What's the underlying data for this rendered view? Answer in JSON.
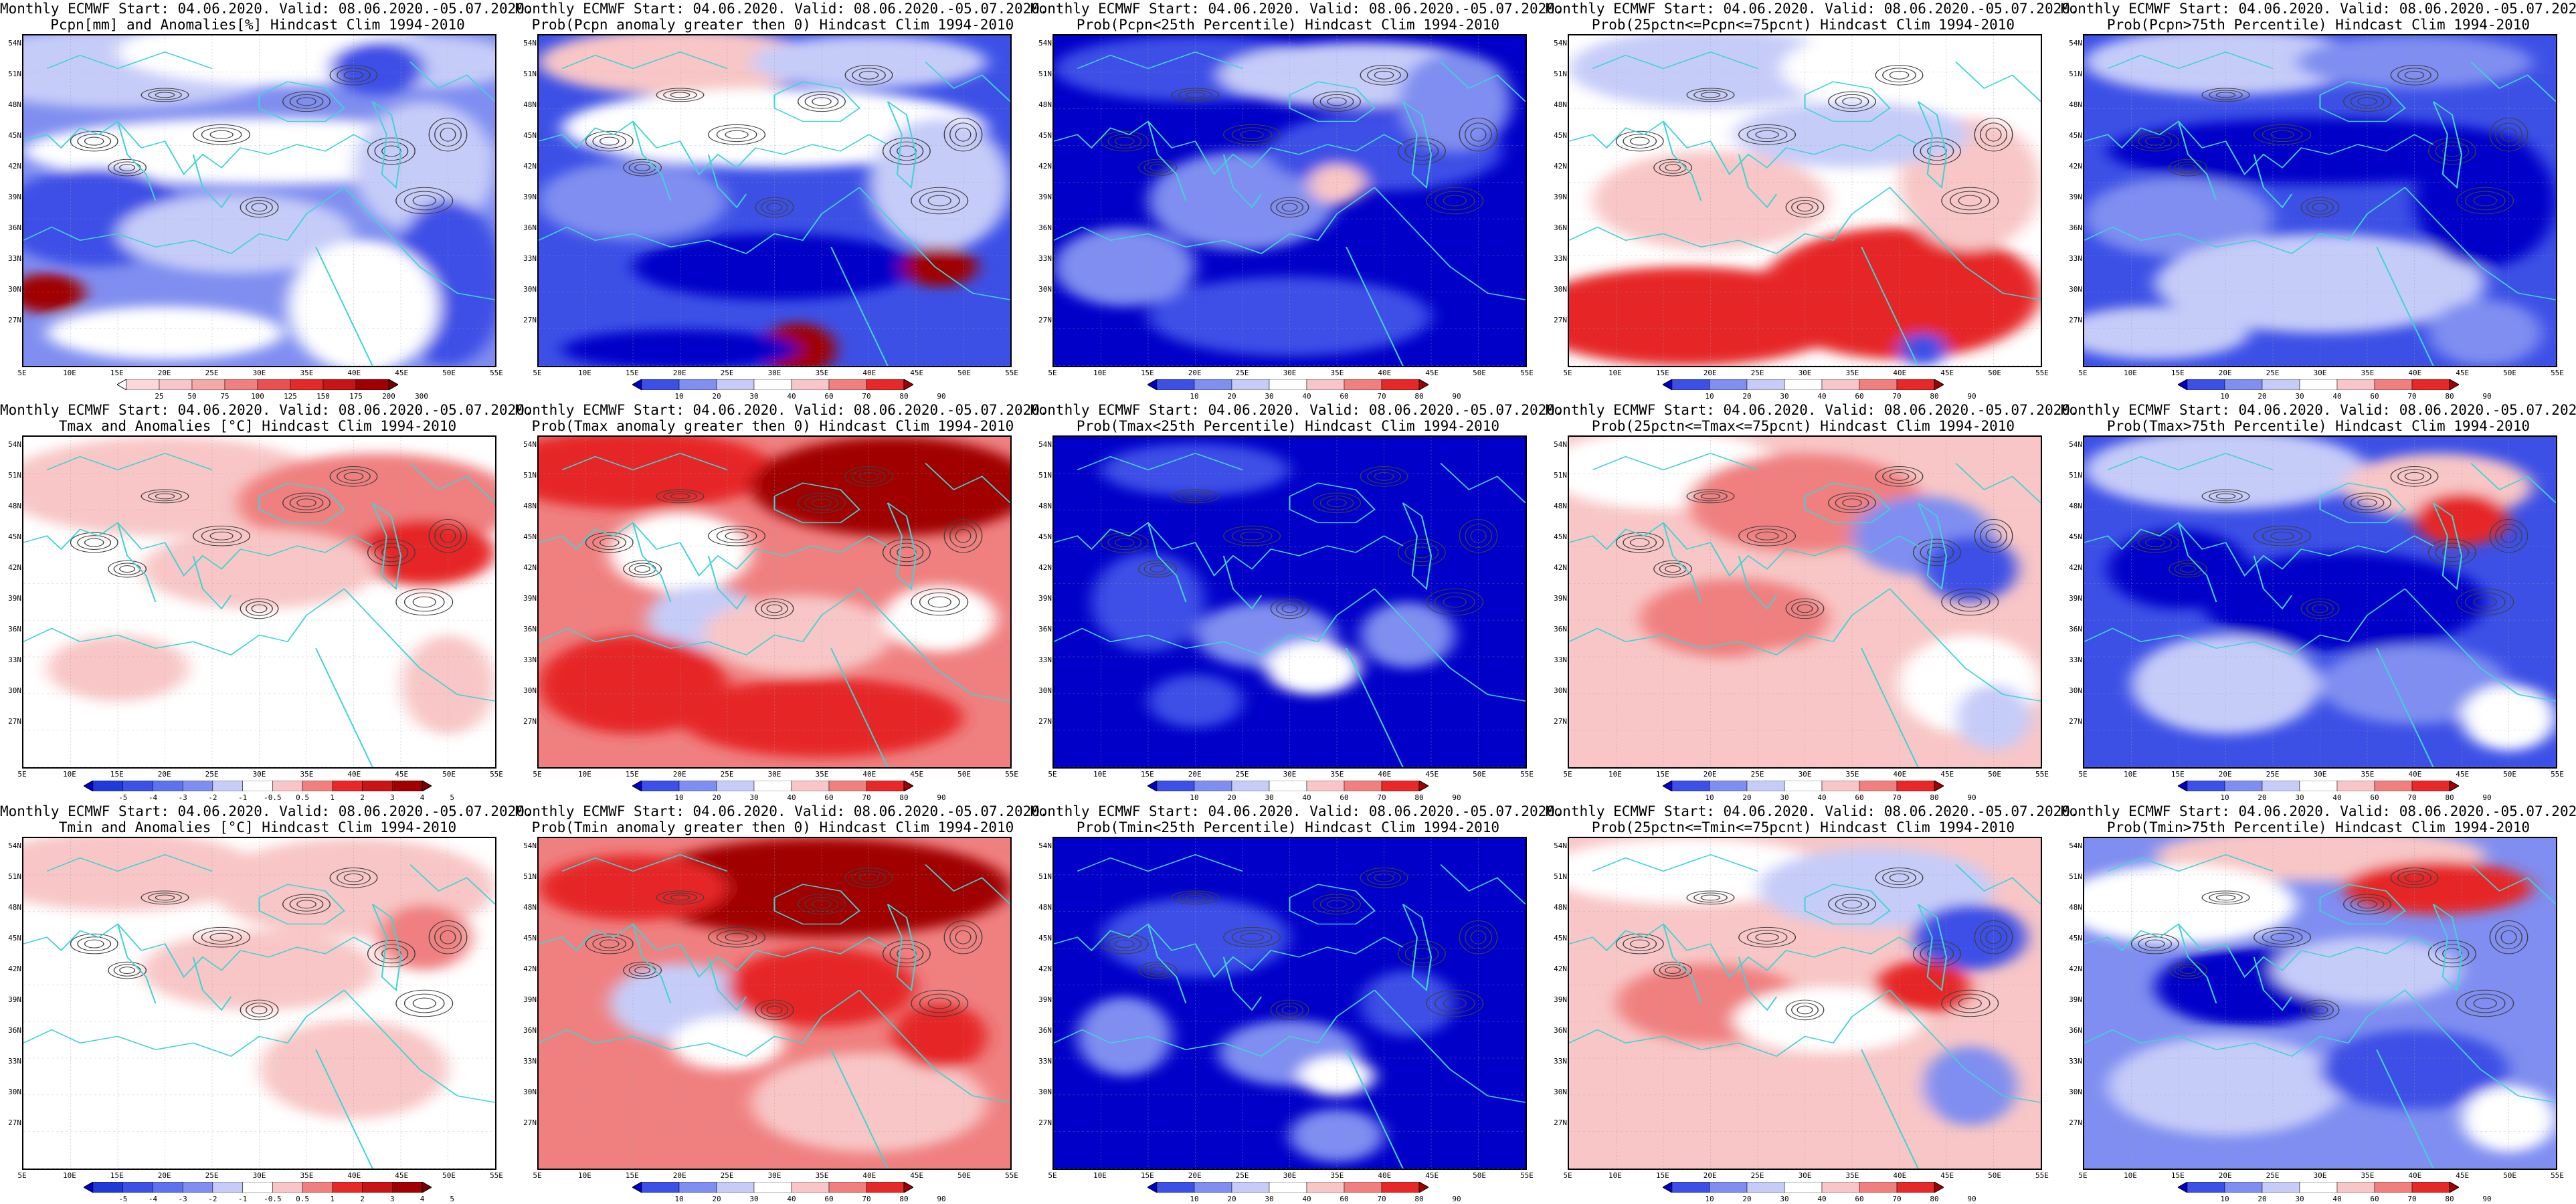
{
  "title_line1": "Monthly ECMWF Start: 04.06.2020. Valid: 08.06.2020.-05.07.2020.",
  "lat_labels": [
    "54N",
    "51N",
    "48N",
    "45N",
    "42N",
    "39N",
    "36N",
    "33N",
    "30N",
    "27N"
  ],
  "lon_labels": [
    "5E",
    "10E",
    "15E",
    "20E",
    "25E",
    "30E",
    "35E",
    "40E",
    "45E",
    "50E",
    "55E"
  ],
  "colorbars": {
    "pcpn": [
      "25",
      "50",
      "75",
      "100",
      "125",
      "150",
      "175",
      "200",
      "300"
    ],
    "prob": [
      "10",
      "20",
      "30",
      "40",
      "60",
      "70",
      "80",
      "90"
    ],
    "anom": [
      "-5",
      "-4",
      "-3",
      "-2",
      "-1",
      "-0.5",
      "0.5",
      "1",
      "2",
      "3",
      "4",
      "5"
    ]
  },
  "colors": {
    "blue_dark": "#0000c8",
    "blue": "#3c50e6",
    "blue_mid": "#7f8ef0",
    "blue_light": "#c6ccf8",
    "white": "#ffffff",
    "red_light": "#f8c6c6",
    "red_mid": "#f08080",
    "red": "#e62828",
    "red_dark": "#a00000",
    "coast": "#3fd4d4",
    "contour": "#404040"
  },
  "panels": [
    {
      "title": "Pcpn[mm] and Anomalies[%] Hindcast Clim 1994-2010",
      "variant": "pcpn_anom",
      "cbar": "pcpn"
    },
    {
      "title": "Prob(Pcpn anomaly greater then 0) Hindcast Clim 1994-2010",
      "variant": "pcpn_gt0",
      "cbar": "prob"
    },
    {
      "title": "Prob(Pcpn<25th Percentile) Hindcast Clim 1994-2010",
      "variant": "pcpn_lt25",
      "cbar": "prob"
    },
    {
      "title": "Prob(25pctn<=Pcpn<=75pcnt) Hindcast Clim 1994-2010",
      "variant": "pcpn_mid",
      "cbar": "prob"
    },
    {
      "title": "Prob(Pcpn>75th Percentile) Hindcast Clim 1994-2010",
      "variant": "pcpn_gt75",
      "cbar": "prob"
    },
    {
      "title": "Tmax and Anomalies [°C] Hindcast Clim 1994-2010",
      "variant": "tmax_anom",
      "cbar": "anom"
    },
    {
      "title": "Prob(Tmax anomaly greater then 0) Hindcast Clim 1994-2010",
      "variant": "tmax_gt0",
      "cbar": "prob"
    },
    {
      "title": "Prob(Tmax<25th Percentile) Hindcast Clim 1994-2010",
      "variant": "tmax_lt25",
      "cbar": "prob"
    },
    {
      "title": "Prob(25pctn<=Tmax<=75pcnt) Hindcast Clim 1994-2010",
      "variant": "tmax_mid",
      "cbar": "prob"
    },
    {
      "title": "Prob(Tmax>75th Percentile) Hindcast Clim 1994-2010",
      "variant": "tmax_gt75",
      "cbar": "prob"
    },
    {
      "title": "Tmin and Anomalies [°C] Hindcast Clim 1994-2010",
      "variant": "tmin_anom",
      "cbar": "anom"
    },
    {
      "title": "Prob(Tmin anomaly greater then 0) Hindcast Clim 1994-2010",
      "variant": "tmin_gt0",
      "cbar": "prob"
    },
    {
      "title": "Prob(Tmin<25th Percentile) Hindcast Clim 1994-2010",
      "variant": "tmin_lt25",
      "cbar": "prob"
    },
    {
      "title": "Prob(25pctn<=Tmin<=75pcnt) Hindcast Clim 1994-2010",
      "variant": "tmin_mid",
      "cbar": "prob"
    },
    {
      "title": "Prob(Tmin>75th Percentile) Hindcast Clim 1994-2010",
      "variant": "tmin_gt75",
      "cbar": "prob"
    }
  ]
}
